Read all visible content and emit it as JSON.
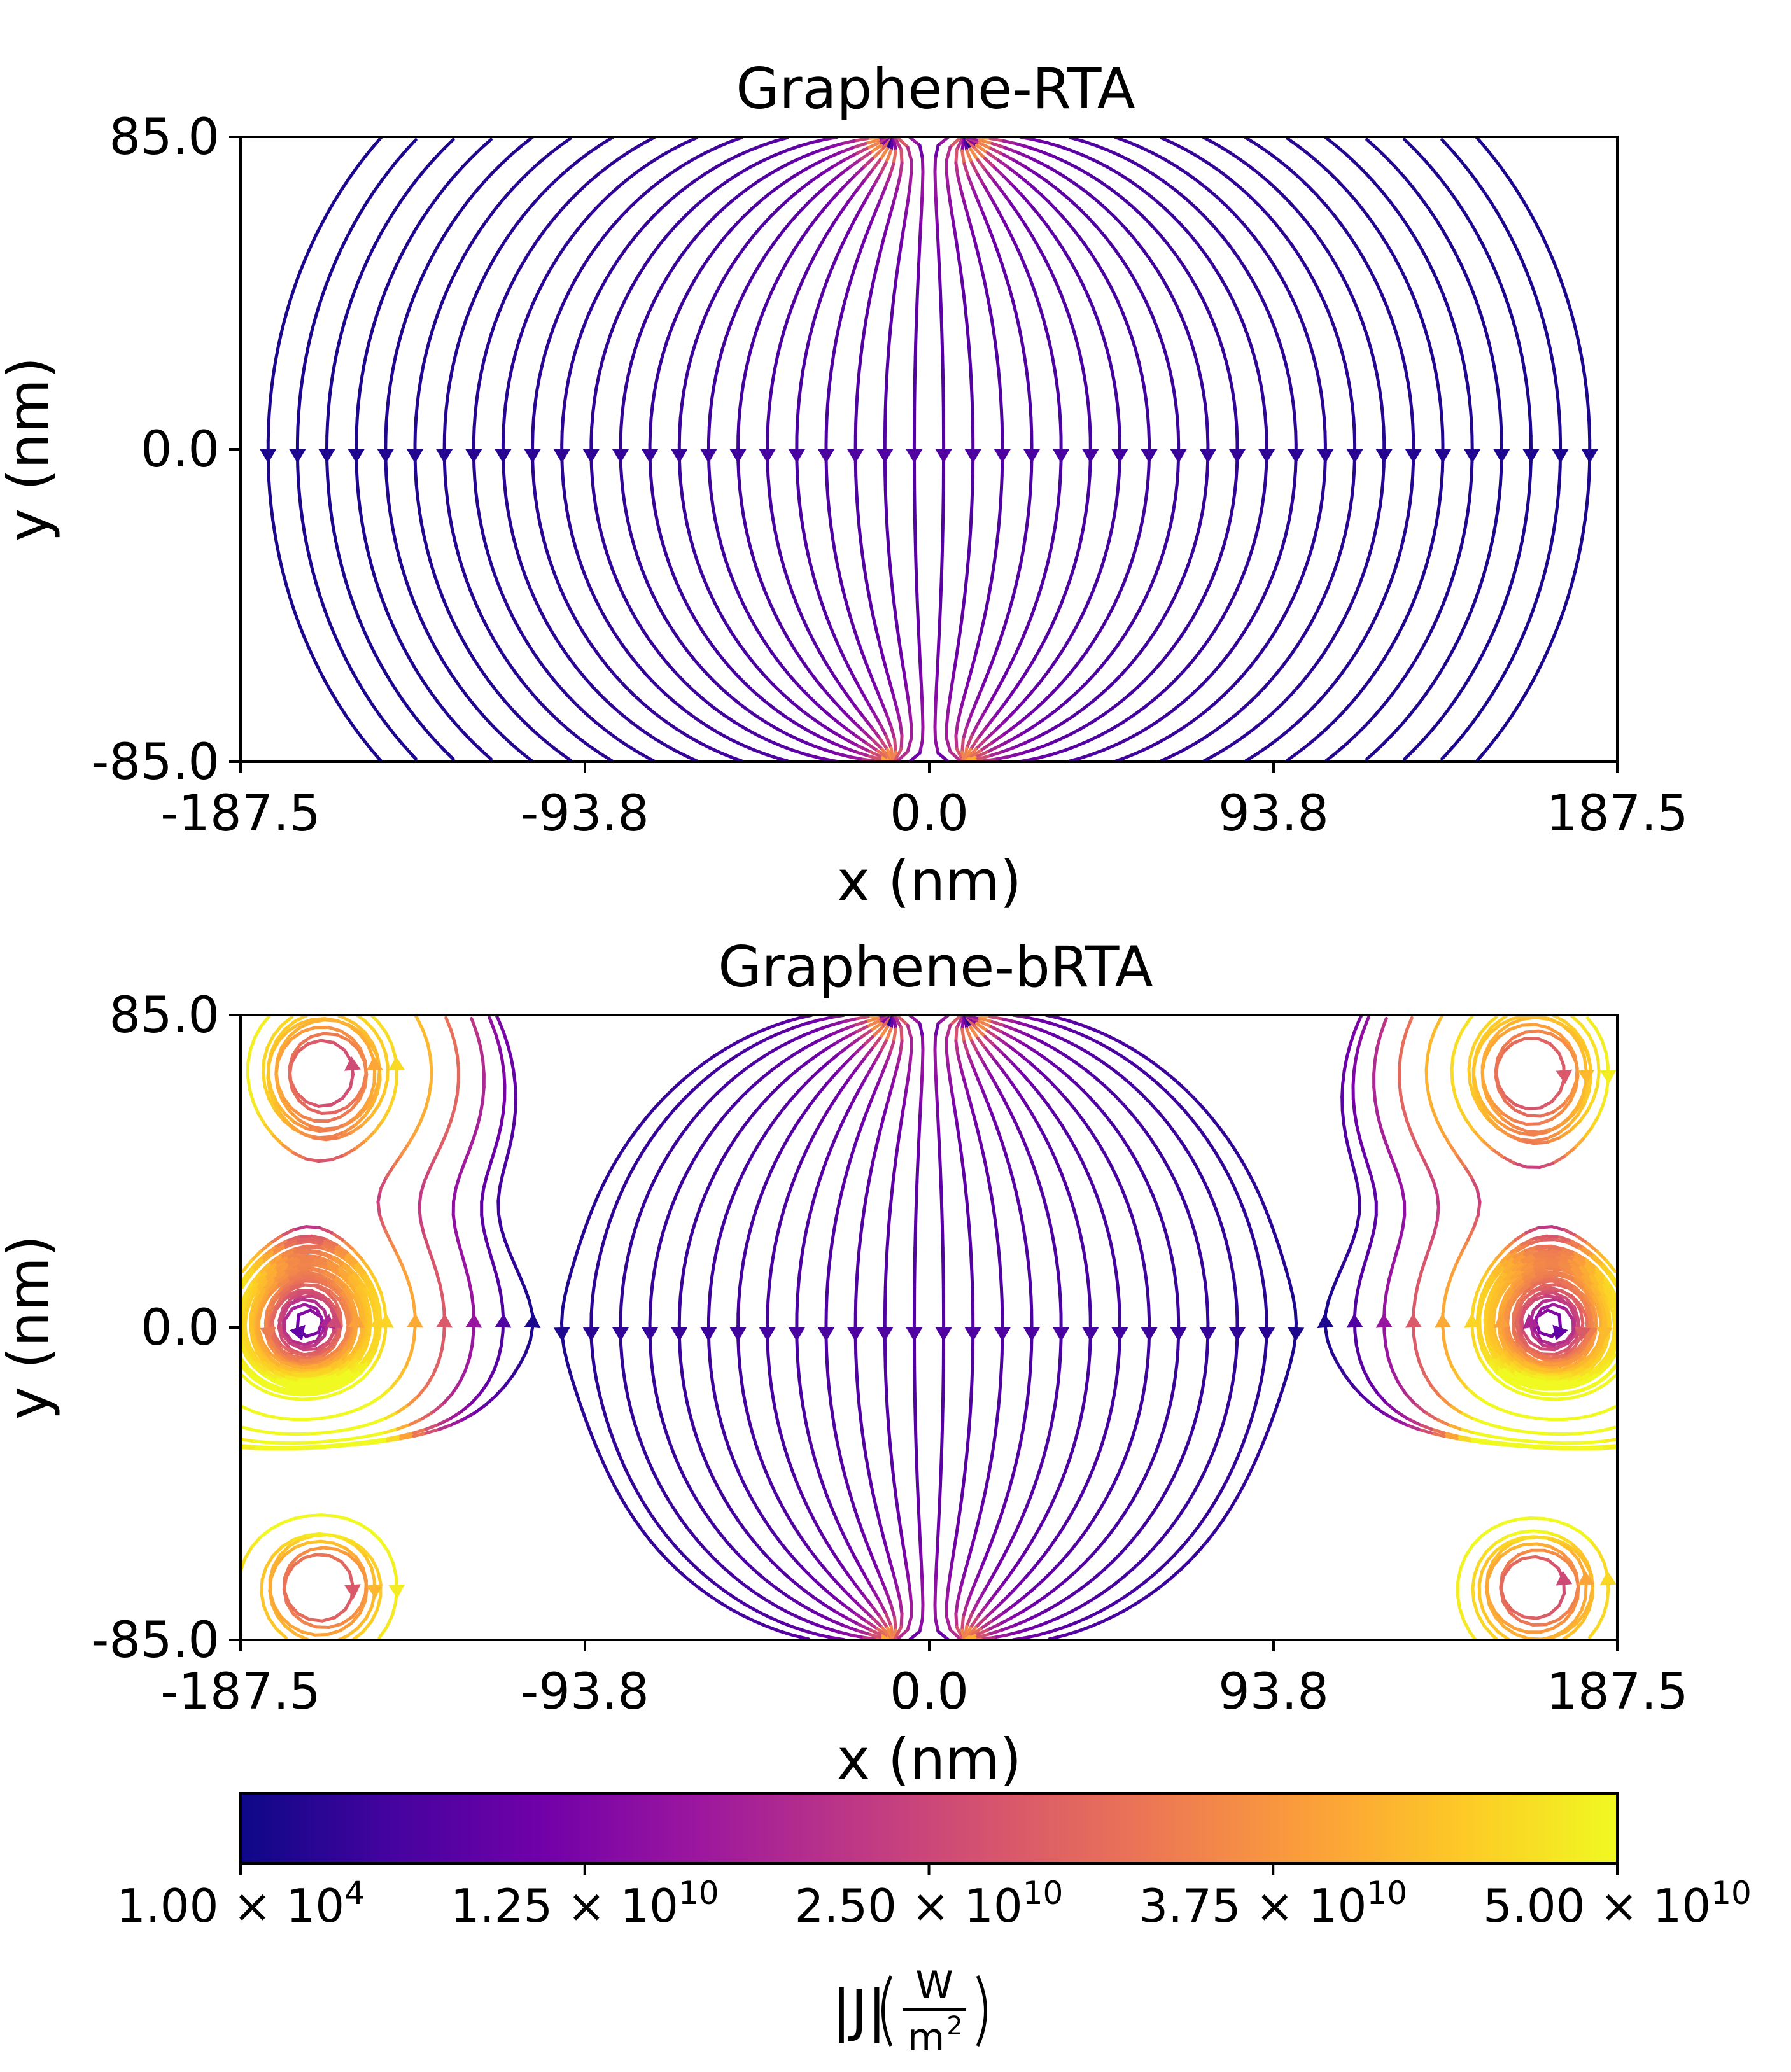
{
  "chart_data": [
    {
      "type": "streamplot",
      "title": "Graphene-RTA",
      "xlabel": "x (nm)",
      "ylabel": "y (nm)",
      "xlim": [
        -187.5,
        187.5
      ],
      "ylim": [
        -85.0,
        85.0
      ],
      "xticks": [
        -187.5,
        -93.8,
        0.0,
        93.8,
        187.5
      ],
      "xtick_labels": [
        "-187.5",
        "-93.8",
        "0.0",
        "93.8",
        "187.5"
      ],
      "yticks": [
        -85.0,
        0.0,
        85.0
      ],
      "ytick_labels": [
        "-85.0",
        "0.0",
        "85.0"
      ],
      "flow": "heat flux enters at the top centre and exits at the bottom centre; streamlines spread to both side walls and point downward at y = 0",
      "has_vortices": false,
      "source_x": [
        -10,
        10
      ],
      "arrow_rows": [
        0
      ]
    },
    {
      "type": "streamplot",
      "title": "Graphene-bRTA",
      "xlabel": "x (nm)",
      "ylabel": "y (nm)",
      "xlim": [
        -187.5,
        187.5
      ],
      "ylim": [
        -85.0,
        85.0
      ],
      "xticks": [
        -187.5,
        -93.8,
        0.0,
        93.8,
        187.5
      ],
      "xtick_labels": [
        "-187.5",
        "-93.8",
        "0.0",
        "93.8",
        "187.5"
      ],
      "yticks": [
        -85.0,
        0.0,
        85.0
      ],
      "ytick_labels": [
        "-85.0",
        "0.0",
        "85.0"
      ],
      "flow": "same top-to-bottom flux with recirculating vortices near the four corners and near the side walls at y = 0",
      "has_vortices": true,
      "vortex_centres": [
        [
          -165,
          70
        ],
        [
          165,
          70
        ],
        [
          -165,
          -70
        ],
        [
          165,
          -70
        ],
        [
          -170,
          0
        ],
        [
          170,
          0
        ]
      ],
      "source_x": [
        -10,
        10
      ],
      "arrow_rows": [
        0
      ]
    }
  ],
  "colorbar": {
    "label": "|J|(W/m²)",
    "label_main": "|J|",
    "label_num": "W",
    "label_den": "m",
    "label_den_sup": "2",
    "colormap": "plasma",
    "range": [
      10000,
      50000000000
    ],
    "ticks": [
      10000,
      12500000000,
      25000000000,
      37500000000,
      50000000000
    ],
    "tick_labels": [
      {
        "mant": "1.00",
        "exp": "4"
      },
      {
        "mant": "1.25",
        "exp": "10"
      },
      {
        "mant": "2.50",
        "exp": "10"
      },
      {
        "mant": "3.75",
        "exp": "10"
      },
      {
        "mant": "5.00",
        "exp": "10"
      }
    ],
    "times_sign": "×",
    "base": "10",
    "colors": [
      "#0d0887",
      "#46039f",
      "#7201a8",
      "#9c179e",
      "#bd3786",
      "#d8576b",
      "#ed7953",
      "#fb9f3a",
      "#fdca26",
      "#f0f921"
    ]
  }
}
